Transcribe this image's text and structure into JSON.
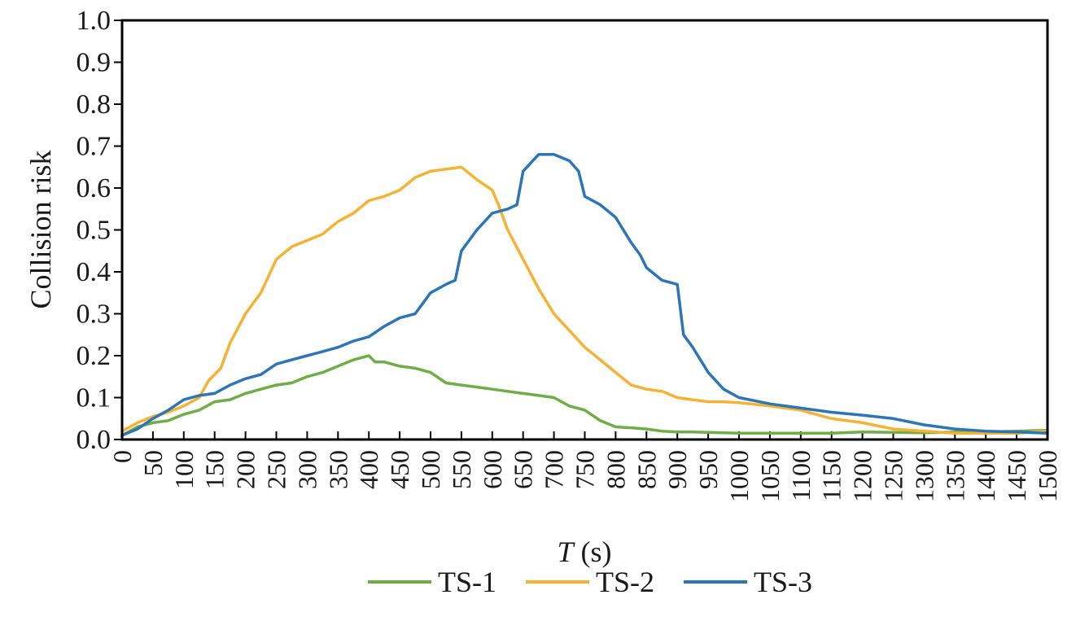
{
  "chart_data": {
    "type": "line",
    "title": "",
    "xlabel_italic": "T",
    "xlabel_unit": "(s)",
    "ylabel": "Collision risk",
    "xlim": [
      0,
      1500
    ],
    "ylim": [
      0,
      1.0
    ],
    "grid": false,
    "legend_position": "bottom",
    "y_ticks": [
      "0.0",
      "0.1",
      "0.2",
      "0.3",
      "0.4",
      "0.5",
      "0.6",
      "0.7",
      "0.8",
      "0.9",
      "1.0"
    ],
    "x_ticks": [
      "0",
      "50",
      "100",
      "150",
      "200",
      "250",
      "300",
      "350",
      "400",
      "450",
      "500",
      "550",
      "600",
      "650",
      "700",
      "750",
      "800",
      "850",
      "900",
      "950",
      "1000",
      "1050",
      "1100",
      "1150",
      "1200",
      "1250",
      "1300",
      "1350",
      "1400",
      "1450",
      "1500"
    ],
    "series": [
      {
        "name": "TS-1",
        "color": "#70ad47",
        "x": [
          0,
          25,
          50,
          75,
          100,
          125,
          150,
          175,
          200,
          225,
          250,
          275,
          300,
          325,
          350,
          375,
          400,
          410,
          425,
          450,
          475,
          500,
          525,
          550,
          575,
          600,
          625,
          650,
          675,
          700,
          725,
          750,
          775,
          800,
          825,
          850,
          875,
          900,
          925,
          950,
          975,
          1000,
          1050,
          1100,
          1150,
          1200,
          1250,
          1300,
          1350,
          1400,
          1450,
          1500
        ],
        "y": [
          0.01,
          0.03,
          0.04,
          0.045,
          0.06,
          0.07,
          0.09,
          0.095,
          0.11,
          0.12,
          0.13,
          0.135,
          0.15,
          0.16,
          0.175,
          0.19,
          0.2,
          0.185,
          0.185,
          0.175,
          0.17,
          0.16,
          0.135,
          0.13,
          0.125,
          0.12,
          0.115,
          0.11,
          0.105,
          0.1,
          0.08,
          0.07,
          0.045,
          0.03,
          0.028,
          0.025,
          0.02,
          0.018,
          0.018,
          0.017,
          0.016,
          0.015,
          0.015,
          0.015,
          0.015,
          0.018,
          0.017,
          0.016,
          0.018,
          0.018,
          0.02,
          0.022
        ]
      },
      {
        "name": "TS-2",
        "color": "#f5b335",
        "x": [
          0,
          25,
          50,
          75,
          100,
          125,
          140,
          160,
          175,
          200,
          225,
          250,
          275,
          300,
          325,
          350,
          375,
          400,
          425,
          450,
          475,
          500,
          525,
          550,
          575,
          600,
          610,
          625,
          650,
          675,
          700,
          725,
          750,
          775,
          800,
          825,
          850,
          875,
          900,
          925,
          950,
          975,
          1000,
          1050,
          1100,
          1150,
          1200,
          1250,
          1300,
          1350,
          1400,
          1450,
          1500
        ],
        "y": [
          0.02,
          0.04,
          0.055,
          0.065,
          0.08,
          0.1,
          0.14,
          0.17,
          0.23,
          0.3,
          0.35,
          0.43,
          0.46,
          0.475,
          0.49,
          0.52,
          0.54,
          0.57,
          0.58,
          0.595,
          0.625,
          0.64,
          0.645,
          0.65,
          0.62,
          0.595,
          0.56,
          0.5,
          0.43,
          0.36,
          0.3,
          0.26,
          0.22,
          0.19,
          0.16,
          0.13,
          0.12,
          0.115,
          0.1,
          0.095,
          0.09,
          0.09,
          0.088,
          0.08,
          0.07,
          0.05,
          0.04,
          0.025,
          0.02,
          0.015,
          0.015,
          0.015,
          0.02
        ]
      },
      {
        "name": "TS-3",
        "color": "#2e75b6",
        "x": [
          0,
          25,
          50,
          75,
          100,
          125,
          150,
          175,
          200,
          225,
          250,
          275,
          300,
          325,
          350,
          375,
          400,
          425,
          450,
          475,
          500,
          525,
          540,
          550,
          575,
          600,
          625,
          640,
          650,
          675,
          700,
          725,
          740,
          750,
          775,
          800,
          825,
          840,
          850,
          875,
          900,
          910,
          925,
          950,
          975,
          1000,
          1050,
          1100,
          1150,
          1200,
          1250,
          1300,
          1350,
          1400,
          1450,
          1500
        ],
        "y": [
          0.01,
          0.025,
          0.05,
          0.07,
          0.095,
          0.105,
          0.11,
          0.13,
          0.145,
          0.155,
          0.18,
          0.19,
          0.2,
          0.21,
          0.22,
          0.235,
          0.245,
          0.27,
          0.29,
          0.3,
          0.35,
          0.37,
          0.38,
          0.45,
          0.5,
          0.54,
          0.55,
          0.56,
          0.64,
          0.68,
          0.68,
          0.665,
          0.64,
          0.58,
          0.56,
          0.53,
          0.47,
          0.44,
          0.41,
          0.38,
          0.37,
          0.25,
          0.22,
          0.16,
          0.12,
          0.1,
          0.085,
          0.075,
          0.065,
          0.058,
          0.05,
          0.035,
          0.025,
          0.02,
          0.018,
          0.015
        ]
      }
    ]
  }
}
